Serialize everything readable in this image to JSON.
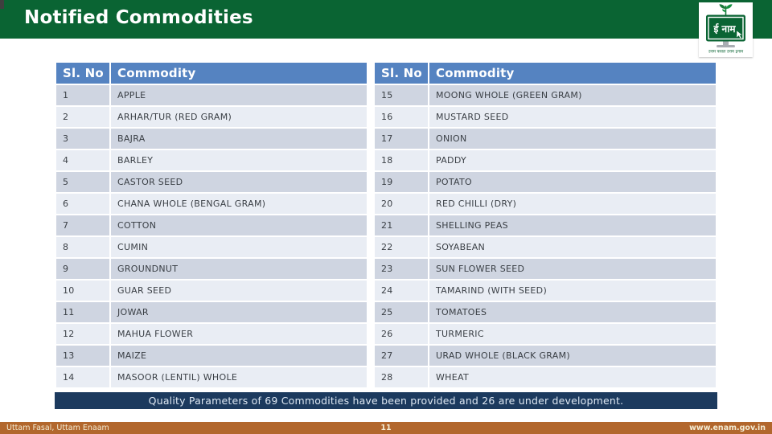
{
  "header": {
    "title": "Notified Commodities"
  },
  "logo": {
    "screen_text": "ई नाम",
    "tagline": "उत्तम फसल उत्तम इनाम"
  },
  "table": {
    "headers": {
      "slno": "Sl. No",
      "commodity": "Commodity"
    },
    "left_rows": [
      {
        "no": "1",
        "name": "APPLE"
      },
      {
        "no": "2",
        "name": "ARHAR/TUR (RED GRAM)"
      },
      {
        "no": "3",
        "name": "BAJRA"
      },
      {
        "no": "4",
        "name": "BARLEY"
      },
      {
        "no": "5",
        "name": "CASTOR SEED"
      },
      {
        "no": "6",
        "name": "CHANA WHOLE (BENGAL GRAM)"
      },
      {
        "no": "7",
        "name": "COTTON"
      },
      {
        "no": "8",
        "name": "CUMIN"
      },
      {
        "no": "9",
        "name": "GROUNDNUT"
      },
      {
        "no": "10",
        "name": "GUAR SEED"
      },
      {
        "no": "11",
        "name": "JOWAR"
      },
      {
        "no": "12",
        "name": "MAHUA FLOWER"
      },
      {
        "no": "13",
        "name": "MAIZE"
      },
      {
        "no": "14",
        "name": "MASOOR (LENTIL) WHOLE"
      }
    ],
    "right_rows": [
      {
        "no": "15",
        "name": "MOONG WHOLE (GREEN GRAM)"
      },
      {
        "no": "16",
        "name": "MUSTARD SEED"
      },
      {
        "no": "17",
        "name": "ONION"
      },
      {
        "no": "18",
        "name": "PADDY"
      },
      {
        "no": "19",
        "name": "POTATO"
      },
      {
        "no": "20",
        "name": "RED CHILLI (DRY)"
      },
      {
        "no": "21",
        "name": "SHELLING PEAS"
      },
      {
        "no": "22",
        "name": "SOYABEAN"
      },
      {
        "no": "23",
        "name": "SUN FLOWER SEED"
      },
      {
        "no": "24",
        "name": "TAMARIND (WITH SEED)"
      },
      {
        "no": "25",
        "name": "TOMATOES"
      },
      {
        "no": "26",
        "name": "TURMERIC"
      },
      {
        "no": "27",
        "name": "URAD WHOLE (BLACK GRAM)"
      },
      {
        "no": "28",
        "name": "WHEAT"
      }
    ]
  },
  "note": "Quality Parameters of 69 Commodities have been provided and 26 are under development.",
  "footer": {
    "left": "Uttam Fasal, Uttam Enaam",
    "page": "11",
    "website": "www.enam.gov.in"
  },
  "colors": {
    "band_green": "#0a6433",
    "header_blue": "#5583c1",
    "row_dark": "#cfd5e1",
    "row_light": "#e9edf4",
    "note_navy": "#1c3a5e",
    "footer_brown": "#b2672d"
  }
}
